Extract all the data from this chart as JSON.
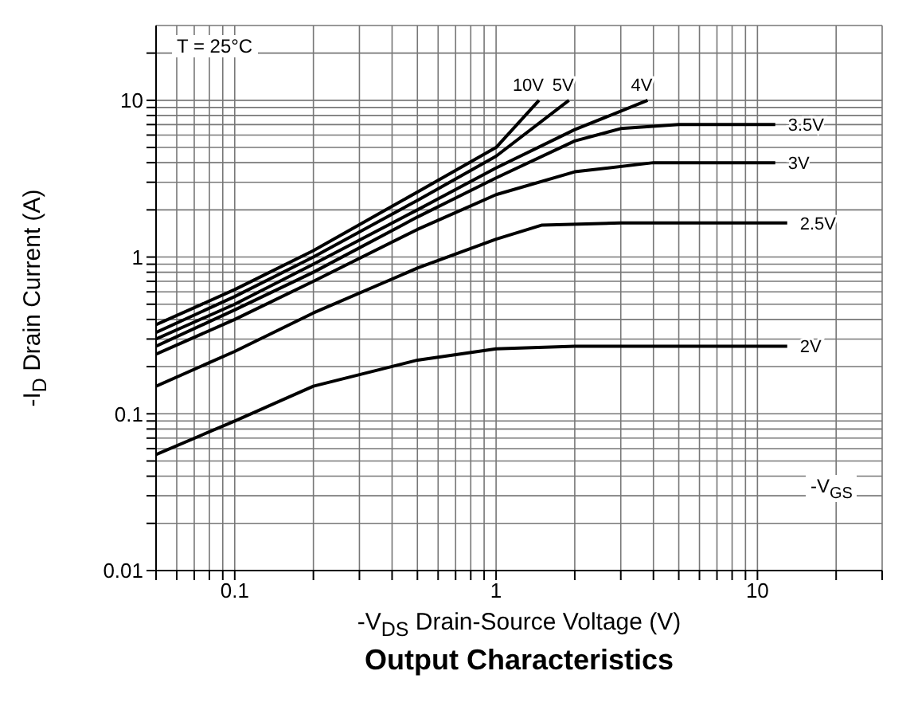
{
  "chart_data": {
    "type": "line",
    "title": "Output Characteristics",
    "xlabel": "-V$_{DS}$ Drain-Source Voltage (V)",
    "ylabel": "-I$_{D}$ Drain Current (A)",
    "legend_title": "-V$_{GS}$",
    "annotations": [
      "T = 25°C"
    ],
    "log": "xy",
    "grid": true,
    "marker": "none",
    "line_style": "solid",
    "xlim": [
      0.05,
      30
    ],
    "ylim": [
      0.01,
      30
    ],
    "xticks": [
      {
        "value": 0.05,
        "label": null
      },
      {
        "value": 0.06,
        "label": null
      },
      {
        "value": 0.07,
        "label": null
      },
      {
        "value": 0.08,
        "label": null
      },
      {
        "value": 0.09,
        "label": null
      },
      0.1,
      {
        "value": 0.2,
        "label": null
      },
      {
        "value": 0.3,
        "label": null
      },
      {
        "value": 0.4,
        "label": null
      },
      {
        "value": 0.5,
        "label": null
      },
      {
        "value": 0.6,
        "label": null
      },
      {
        "value": 0.7,
        "label": null
      },
      {
        "value": 0.8,
        "label": null
      },
      {
        "value": 0.9,
        "label": null
      },
      1,
      {
        "value": 2,
        "label": null
      },
      {
        "value": 3,
        "label": null
      },
      {
        "value": 4,
        "label": null
      },
      {
        "value": 5,
        "label": null
      },
      {
        "value": 6,
        "label": null
      },
      {
        "value": 7,
        "label": null
      },
      {
        "value": 8,
        "label": null
      },
      {
        "value": 9,
        "label": null
      },
      10,
      {
        "value": 20,
        "label": null
      },
      {
        "value": 30,
        "label": null
      }
    ],
    "yticks": [
      0.01,
      {
        "value": 0.02,
        "label": null
      },
      {
        "value": 0.03,
        "label": null
      },
      {
        "value": 0.04,
        "label": null
      },
      {
        "value": 0.05,
        "label": null
      },
      {
        "value": 0.06,
        "label": null
      },
      {
        "value": 0.07,
        "label": null
      },
      {
        "value": 0.08,
        "label": null
      },
      {
        "value": 0.09,
        "label": null
      },
      0.1,
      {
        "value": 0.2,
        "label": null
      },
      {
        "value": 0.3,
        "label": null
      },
      {
        "value": 0.4,
        "label": null
      },
      {
        "value": 0.5,
        "label": null
      },
      {
        "value": 0.6,
        "label": null
      },
      {
        "value": 0.7,
        "label": null
      },
      {
        "value": 0.8,
        "label": null
      },
      {
        "value": 0.9,
        "label": null
      },
      1,
      {
        "value": 2,
        "label": null
      },
      {
        "value": 3,
        "label": null
      },
      {
        "value": 4,
        "label": null
      },
      {
        "value": 5,
        "label": null
      },
      {
        "value": 6,
        "label": null
      },
      {
        "value": 7,
        "label": null
      },
      {
        "value": 8,
        "label": null
      },
      {
        "value": 9,
        "label": null
      },
      10,
      {
        "value": 20,
        "label": null
      }
    ],
    "series": [
      {
        "name": "10V",
        "color": "#000000",
        "x": [
          0.05,
          0.1,
          0.2,
          0.5,
          1,
          1.46
        ],
        "values": [
          0.37,
          0.62,
          1.1,
          2.6,
          5,
          10
        ]
      },
      {
        "name": "5V",
        "color": "#000000",
        "x": [
          0.05,
          0.1,
          0.2,
          0.5,
          1,
          1.9
        ],
        "values": [
          0.33,
          0.56,
          1,
          2.3,
          4.4,
          10
        ]
      },
      {
        "name": "4V",
        "color": "#000000",
        "x": [
          0.05,
          0.1,
          0.2,
          0.5,
          1,
          2,
          3.8
        ],
        "values": [
          0.3,
          0.5,
          0.9,
          2,
          3.7,
          6.5,
          10
        ]
      },
      {
        "name": "3.5V",
        "color": "#000000",
        "x": [
          0.05,
          0.1,
          0.2,
          0.5,
          1,
          2,
          3,
          5,
          11.7
        ],
        "values": [
          0.27,
          0.46,
          0.8,
          1.8,
          3.2,
          5.5,
          6.6,
          7,
          7
        ]
      },
      {
        "name": "3V",
        "color": "#000000",
        "x": [
          0.05,
          0.1,
          0.2,
          0.5,
          1,
          2,
          4,
          11.7
        ],
        "values": [
          0.24,
          0.4,
          0.7,
          1.5,
          2.5,
          3.5,
          4,
          4
        ]
      },
      {
        "name": "2.5V",
        "color": "#000000",
        "x": [
          0.05,
          0.1,
          0.2,
          0.5,
          1,
          1.5,
          3,
          13
        ],
        "values": [
          0.15,
          0.25,
          0.44,
          0.85,
          1.3,
          1.6,
          1.65,
          1.65
        ]
      },
      {
        "name": "2V",
        "color": "#000000",
        "x": [
          0.05,
          0.1,
          0.2,
          0.5,
          1,
          2,
          13
        ],
        "values": [
          0.055,
          0.09,
          0.15,
          0.22,
          0.26,
          0.27,
          0.27
        ]
      }
    ]
  }
}
